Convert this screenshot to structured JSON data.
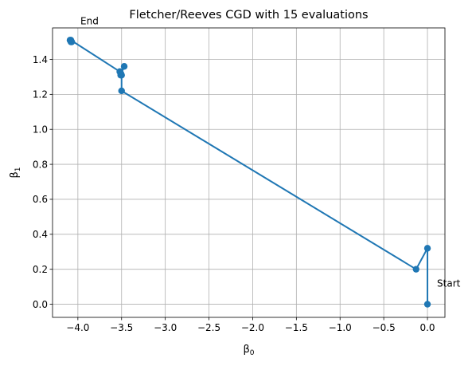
{
  "chart_data": {
    "type": "line",
    "title": "Fletcher/Reeves CGD with 15 evaluations",
    "xlabel": "β",
    "xlabel_sub": "0",
    "ylabel": "β",
    "ylabel_sub": "1",
    "xlim": [
      -4.29,
      0.2
    ],
    "ylim": [
      -0.075,
      1.58
    ],
    "xticks": [
      -4.0,
      -3.5,
      -3.0,
      -2.5,
      -2.0,
      -1.5,
      -1.0,
      -0.5,
      0.0
    ],
    "xtick_labels": [
      "−4.0",
      "−3.5",
      "−3.0",
      "−2.5",
      "−2.0",
      "−1.5",
      "−1.0",
      "−0.5",
      "0.0"
    ],
    "yticks": [
      0.0,
      0.2,
      0.4,
      0.6,
      0.8,
      1.0,
      1.2,
      1.4
    ],
    "ytick_labels": [
      "0.0",
      "0.2",
      "0.4",
      "0.6",
      "0.8",
      "1.0",
      "1.2",
      "1.4"
    ],
    "grid": true,
    "series": [
      {
        "color": "#1f77b4",
        "marker": "circle",
        "x": [
          0.0,
          0.0,
          -0.13,
          -3.5,
          -3.5,
          -3.52,
          -3.51,
          -3.51,
          -3.47,
          -3.51,
          -3.52,
          -4.08,
          -4.07,
          -4.09,
          -4.08
        ],
        "y": [
          0.0,
          0.32,
          0.2,
          1.22,
          1.31,
          1.33,
          1.32,
          1.31,
          1.36,
          1.32,
          1.33,
          1.51,
          1.5,
          1.51,
          1.5
        ]
      }
    ],
    "annotations": [
      {
        "text": "Start",
        "x": 0.0,
        "y": 0.0
      },
      {
        "text": "End",
        "x": -4.08,
        "y": 1.5
      }
    ]
  }
}
